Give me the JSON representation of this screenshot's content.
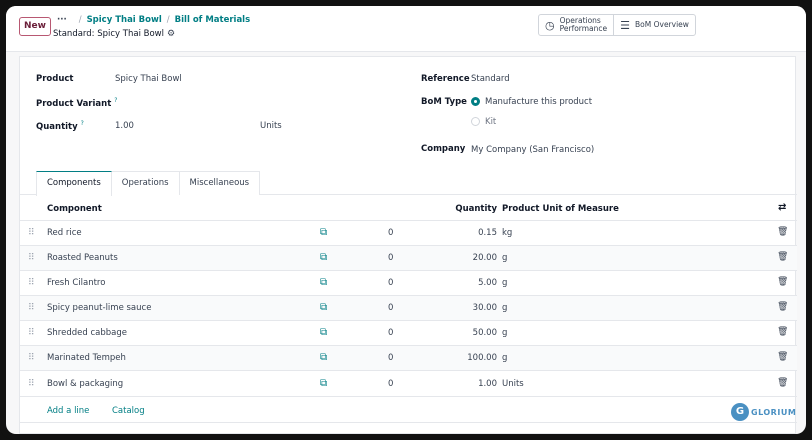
{
  "control_panel": {
    "new_label": "New",
    "breadcrumb_dots": "···",
    "breadcrumb": [
      "Spicy Thai Bowl",
      "Bill of Materials"
    ],
    "record_title": "Standard: Spicy Thai Bowl",
    "stat_buttons": {
      "operations_line1": "Operations",
      "operations_line2": "Performance",
      "bom_overview": "BoM Overview"
    }
  },
  "form": {
    "product_label": "Product",
    "product_value": "Spicy Thai Bowl",
    "variant_label": "Product Variant",
    "variant_help": "?",
    "quantity_label": "Quantity",
    "quantity_help": "?",
    "quantity_value": "1.00",
    "quantity_uom": "Units",
    "reference_label": "Reference",
    "reference_value": "Standard",
    "bom_type_label": "BoM Type",
    "bom_type_options": [
      "Manufacture this product",
      "Kit"
    ],
    "company_label": "Company",
    "company_value": "My Company (San Francisco)"
  },
  "tabs": [
    "Components",
    "Operations",
    "Miscellaneous"
  ],
  "table": {
    "headers": {
      "component": "Component",
      "quantity": "Quantity",
      "uom": "Product Unit of Measure"
    },
    "rows": [
      {
        "name": "Red rice",
        "zero": "0",
        "qty": "0.15",
        "uom": "kg"
      },
      {
        "name": "Roasted Peanuts",
        "zero": "0",
        "qty": "20.00",
        "uom": "g"
      },
      {
        "name": "Fresh Cilantro",
        "zero": "0",
        "qty": "5.00",
        "uom": "g"
      },
      {
        "name": "Spicy peanut-lime sauce",
        "zero": "0",
        "qty": "30.00",
        "uom": "g"
      },
      {
        "name": "Shredded cabbage",
        "zero": "0",
        "qty": "50.00",
        "uom": "g"
      },
      {
        "name": "Marinated Tempeh",
        "zero": "0",
        "qty": "100.00",
        "uom": "g"
      },
      {
        "name": "Bowl & packaging",
        "zero": "0",
        "qty": "1.00",
        "uom": "Units"
      }
    ],
    "add_line": "Add a line",
    "catalog": "Catalog"
  },
  "watermark": "GLORIUM",
  "colors": {
    "accent": "#017e84",
    "primary": "#6b1f3a"
  }
}
